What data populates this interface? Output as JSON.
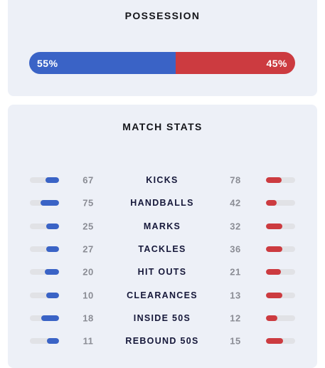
{
  "colors": {
    "home": "#3a63c6",
    "away": "#cc3b40",
    "track": "#e1e2e6",
    "card_bg": "#edf0f7"
  },
  "possession": {
    "title": "POSSESSION",
    "home_pct": 55,
    "away_pct": 45,
    "home_label": "55%",
    "away_label": "45%"
  },
  "match_stats": {
    "title": "MATCH STATS",
    "rows": [
      {
        "label": "KICKS",
        "home": "67",
        "away": "78",
        "home_fill": 0.46,
        "away_fill": 0.54
      },
      {
        "label": "HANDBALLS",
        "home": "75",
        "away": "42",
        "home_fill": 0.64,
        "away_fill": 0.36
      },
      {
        "label": "MARKS",
        "home": "25",
        "away": "32",
        "home_fill": 0.44,
        "away_fill": 0.56
      },
      {
        "label": "TACKLES",
        "home": "27",
        "away": "36",
        "home_fill": 0.43,
        "away_fill": 0.57
      },
      {
        "label": "HIT OUTS",
        "home": "20",
        "away": "21",
        "home_fill": 0.49,
        "away_fill": 0.51
      },
      {
        "label": "CLEARANCES",
        "home": "10",
        "away": "13",
        "home_fill": 0.43,
        "away_fill": 0.57
      },
      {
        "label": "INSIDE 50S",
        "home": "18",
        "away": "12",
        "home_fill": 0.6,
        "away_fill": 0.4
      },
      {
        "label": "REBOUND 50S",
        "home": "11",
        "away": "15",
        "home_fill": 0.42,
        "away_fill": 0.58
      }
    ]
  }
}
